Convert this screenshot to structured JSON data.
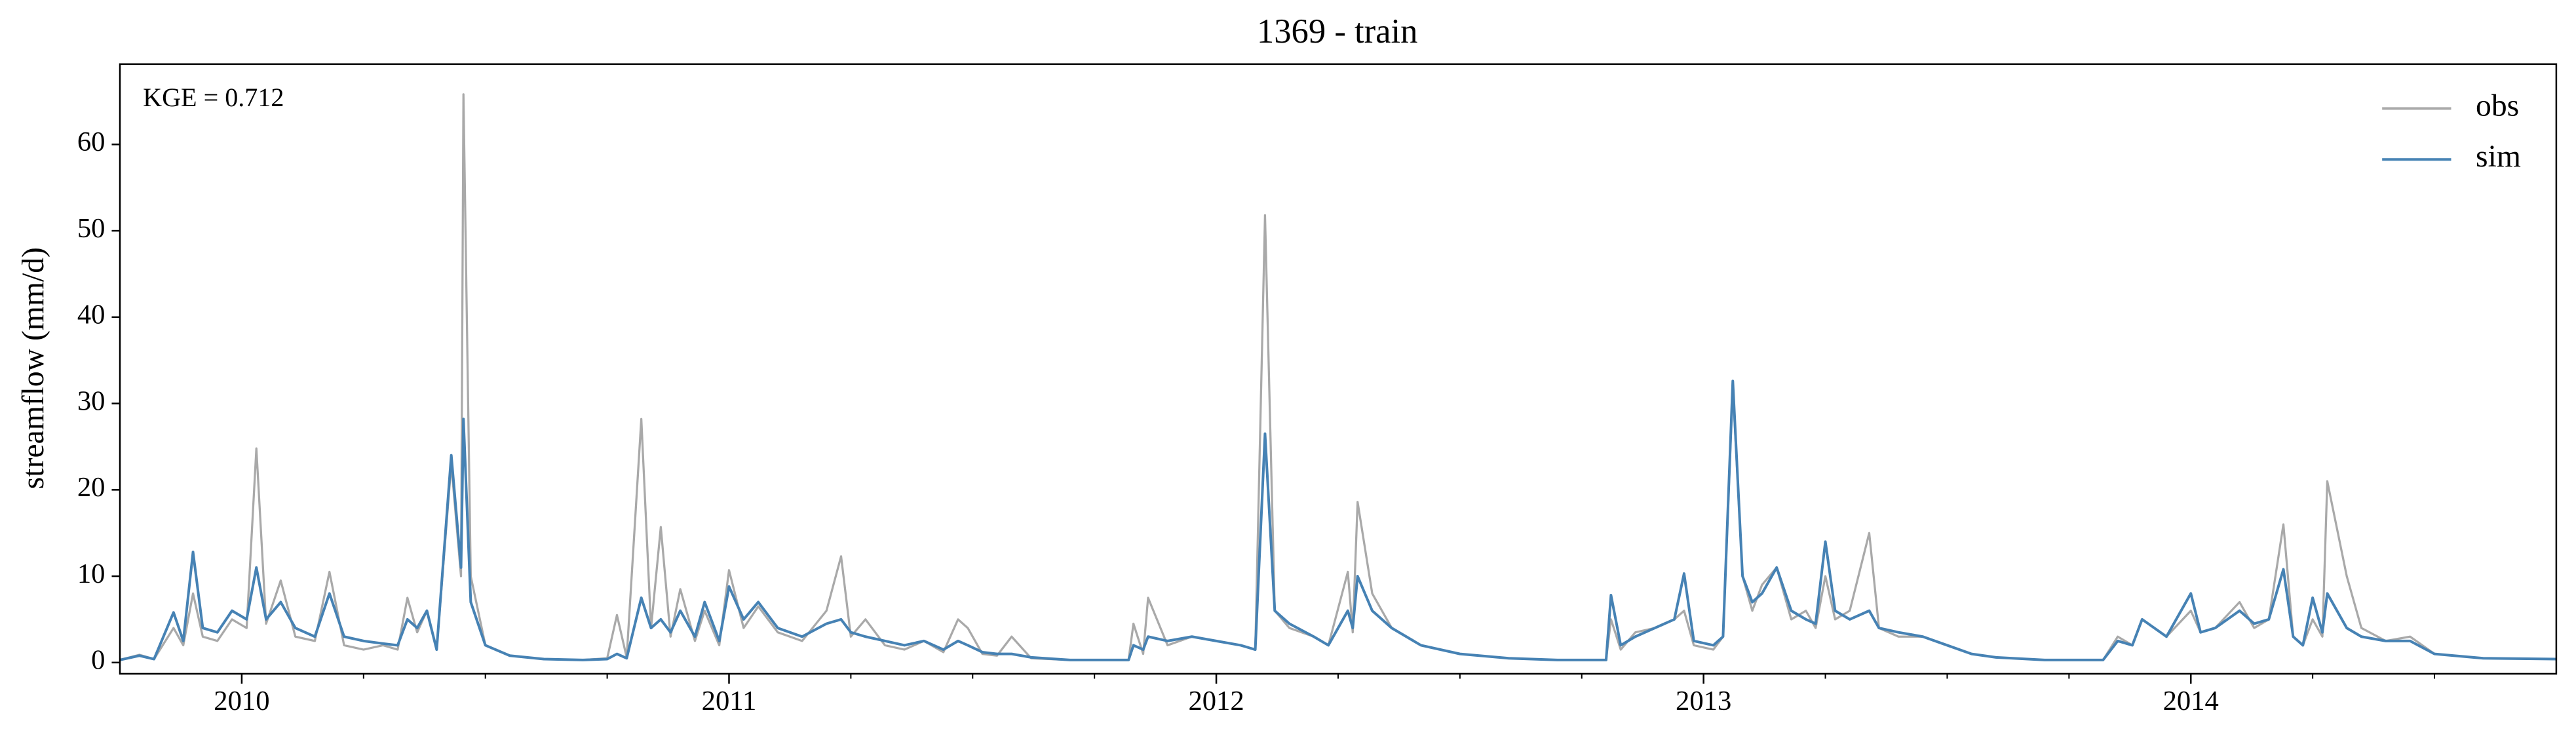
{
  "chart_data": {
    "type": "line",
    "title": "1369 - train",
    "ylabel": "streamflow (mm/d)",
    "annotation": "KGE = 0.712",
    "legend": "upper right",
    "xlim": [
      2009.75,
      2014.75
    ],
    "xticks": [
      2010,
      2011,
      2012,
      2013,
      2014
    ],
    "xminorticks": [
      2010.25,
      2010.5,
      2010.75,
      2011.25,
      2011.5,
      2011.75,
      2012.25,
      2012.5,
      2012.75,
      2013.25,
      2013.5,
      2013.75,
      2014.25,
      2014.5
    ],
    "ylim": [
      -1.3,
      69.3
    ],
    "yticks": [
      0,
      10,
      20,
      30,
      40,
      50,
      60
    ],
    "x": [
      2009.75,
      2009.79,
      2009.82,
      2009.86,
      2009.88,
      2009.9,
      2009.92,
      2009.95,
      2009.98,
      2010.01,
      2010.03,
      2010.05,
      2010.08,
      2010.11,
      2010.15,
      2010.18,
      2010.21,
      2010.25,
      2010.29,
      2010.32,
      2010.34,
      2010.36,
      2010.38,
      2010.4,
      2010.43,
      2010.45,
      2010.455,
      2010.47,
      2010.5,
      2010.55,
      2010.62,
      2010.7,
      2010.75,
      2010.77,
      2010.79,
      2010.82,
      2010.84,
      2010.86,
      2010.88,
      2010.9,
      2010.93,
      2010.95,
      2010.98,
      2011.0,
      2011.03,
      2011.06,
      2011.1,
      2011.15,
      2011.2,
      2011.23,
      2011.25,
      2011.28,
      2011.32,
      2011.36,
      2011.4,
      2011.44,
      2011.47,
      2011.49,
      2011.52,
      2011.55,
      2011.58,
      2011.62,
      2011.7,
      2011.82,
      2011.83,
      2011.85,
      2011.86,
      2011.9,
      2011.95,
      2012.0,
      2012.05,
      2012.08,
      2012.1,
      2012.12,
      2012.15,
      2012.2,
      2012.23,
      2012.27,
      2012.28,
      2012.29,
      2012.32,
      2012.36,
      2012.42,
      2012.5,
      2012.6,
      2012.7,
      2012.8,
      2012.81,
      2012.83,
      2012.86,
      2012.9,
      2012.94,
      2012.96,
      2012.98,
      2013.02,
      2013.04,
      2013.06,
      2013.08,
      2013.1,
      2013.12,
      2013.15,
      2013.18,
      2013.21,
      2013.23,
      2013.25,
      2013.27,
      2013.3,
      2013.34,
      2013.36,
      2013.4,
      2013.45,
      2013.5,
      2013.55,
      2013.6,
      2013.7,
      2013.82,
      2013.85,
      2013.88,
      2013.9,
      2013.95,
      2014.0,
      2014.02,
      2014.05,
      2014.1,
      2014.13,
      2014.16,
      2014.19,
      2014.21,
      2014.23,
      2014.25,
      2014.27,
      2014.28,
      2014.32,
      2014.35,
      2014.4,
      2014.45,
      2014.5,
      2014.6,
      2014.75
    ],
    "series": [
      {
        "name": "obs",
        "color": "#a9a9a9",
        "values": [
          0.3,
          0.9,
          0.4,
          4.0,
          2.0,
          8.0,
          3.0,
          2.5,
          5.0,
          4.0,
          24.8,
          4.5,
          9.5,
          3.0,
          2.5,
          10.5,
          2.0,
          1.5,
          2.0,
          1.5,
          7.5,
          3.5,
          6.0,
          1.5,
          23.0,
          10.0,
          65.8,
          10.0,
          2.0,
          0.8,
          0.4,
          0.3,
          0.5,
          5.5,
          0.6,
          28.2,
          4.0,
          15.7,
          3.0,
          8.5,
          2.5,
          6.0,
          2.0,
          10.7,
          4.0,
          6.5,
          3.5,
          2.5,
          6.0,
          12.3,
          3.0,
          5.0,
          2.0,
          1.5,
          2.5,
          1.2,
          5.0,
          4.0,
          1.0,
          0.8,
          3.0,
          0.5,
          0.3,
          0.3,
          4.5,
          1.0,
          7.5,
          2.0,
          3.0,
          2.5,
          2.0,
          1.5,
          51.8,
          6.0,
          4.0,
          3.0,
          2.0,
          10.5,
          3.5,
          18.6,
          8.0,
          4.0,
          2.0,
          1.0,
          0.5,
          0.3,
          0.3,
          5.0,
          1.5,
          3.5,
          4.0,
          5.0,
          6.0,
          2.0,
          1.5,
          3.0,
          32.0,
          10.0,
          6.0,
          9.0,
          11.0,
          5.0,
          6.0,
          4.0,
          10.0,
          5.0,
          6.0,
          15.0,
          4.0,
          3.0,
          3.0,
          2.0,
          1.0,
          0.6,
          0.3,
          0.3,
          3.0,
          2.0,
          5.0,
          3.0,
          6.0,
          3.5,
          4.0,
          7.0,
          4.0,
          5.0,
          16.0,
          3.0,
          2.0,
          5.0,
          3.0,
          21.0,
          10.0,
          4.0,
          2.5,
          3.0,
          1.0,
          0.5,
          0.4
        ]
      },
      {
        "name": "sim",
        "color": "#4682b4",
        "values": [
          0.3,
          0.8,
          0.4,
          5.8,
          2.5,
          12.8,
          4.0,
          3.5,
          6.0,
          5.0,
          11.0,
          5.0,
          7.0,
          4.0,
          3.0,
          8.0,
          3.0,
          2.5,
          2.2,
          2.0,
          5.0,
          4.0,
          6.0,
          1.5,
          24.0,
          11.0,
          28.2,
          7.0,
          2.0,
          0.8,
          0.4,
          0.3,
          0.4,
          1.0,
          0.5,
          7.5,
          4.0,
          5.0,
          3.5,
          6.0,
          3.0,
          7.0,
          2.5,
          8.8,
          5.0,
          7.0,
          4.0,
          3.0,
          4.5,
          5.0,
          3.5,
          3.0,
          2.5,
          2.0,
          2.5,
          1.5,
          2.5,
          2.0,
          1.2,
          1.0,
          1.0,
          0.6,
          0.3,
          0.3,
          2.0,
          1.5,
          3.0,
          2.5,
          3.0,
          2.5,
          2.0,
          1.5,
          26.5,
          6.0,
          4.5,
          3.0,
          2.0,
          6.0,
          4.0,
          10.0,
          6.0,
          4.0,
          2.0,
          1.0,
          0.5,
          0.3,
          0.3,
          7.8,
          2.0,
          3.0,
          4.0,
          5.0,
          10.3,
          2.5,
          2.0,
          3.0,
          32.6,
          10.0,
          7.0,
          8.0,
          11.0,
          6.0,
          5.0,
          4.5,
          14.0,
          6.0,
          5.0,
          6.0,
          4.0,
          3.5,
          3.0,
          2.0,
          1.0,
          0.6,
          0.3,
          0.3,
          2.5,
          2.0,
          5.0,
          3.0,
          8.0,
          3.5,
          4.0,
          6.0,
          4.5,
          5.0,
          10.8,
          3.0,
          2.0,
          7.5,
          3.5,
          8.0,
          4.0,
          3.0,
          2.5,
          2.5,
          1.0,
          0.5,
          0.4
        ]
      }
    ]
  }
}
